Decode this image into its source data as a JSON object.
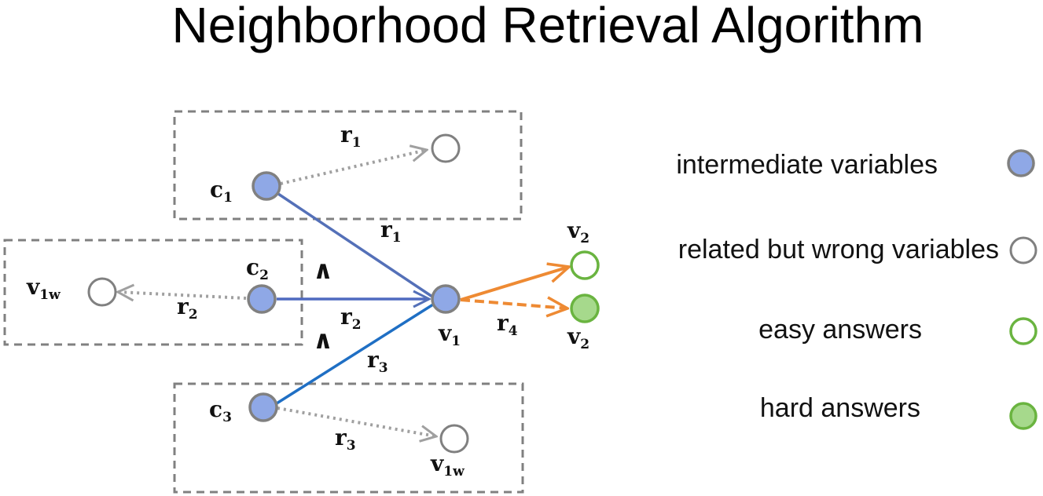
{
  "title": "Neighborhood Retrieval Algorithm",
  "colors": {
    "intermediate_fill": "#8fa8e6",
    "node_stroke": "#808080",
    "easy_stroke": "#6ab440",
    "hard_fill": "#a6d98c",
    "edge_r1": "#5470b8",
    "edge_r2": "#4f6ac0",
    "edge_r3": "#1f6fc4",
    "edge_answer": "#ee8a33",
    "edge_neighbor": "#a0a0a0",
    "box_stroke": "#808080"
  },
  "nodes": {
    "c1": {
      "base": "c",
      "sub": "1"
    },
    "c2": {
      "base": "c",
      "sub": "2"
    },
    "c3": {
      "base": "c",
      "sub": "3"
    },
    "v1": {
      "base": "v",
      "sub": "1"
    },
    "v1w_left": {
      "base": "v",
      "sub": "1w"
    },
    "v1w_bottom": {
      "base": "v",
      "sub": "1w"
    },
    "v2_easy": {
      "base": "v",
      "sub": "2"
    },
    "v2_hard": {
      "base": "v",
      "sub": "2"
    }
  },
  "edges": {
    "c1_to_v1": {
      "base": "r",
      "sub": "1"
    },
    "c1_neighbor": {
      "base": "r",
      "sub": "1"
    },
    "c2_to_v1": {
      "base": "r",
      "sub": "2"
    },
    "c2_neighbor": {
      "base": "r",
      "sub": "2"
    },
    "c3_to_v1": {
      "base": "r",
      "sub": "3"
    },
    "c3_neighbor": {
      "base": "r",
      "sub": "3"
    },
    "v1_to_answers": {
      "base": "r",
      "sub": "4"
    }
  },
  "conjunctions": [
    "∧",
    "∧"
  ],
  "legend": [
    {
      "label": "intermediate variables",
      "marker": "intermediate"
    },
    {
      "label": "related but wrong variables",
      "marker": "wrong"
    },
    {
      "label": "easy answers",
      "marker": "easy"
    },
    {
      "label": "hard answers",
      "marker": "hard"
    }
  ]
}
